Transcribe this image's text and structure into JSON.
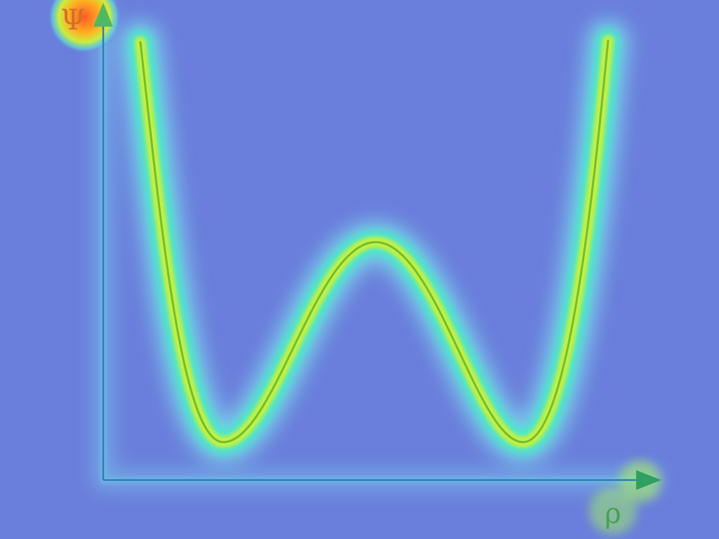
{
  "axes": {
    "y_label": "Ψ",
    "x_label": "ρ"
  }
}
